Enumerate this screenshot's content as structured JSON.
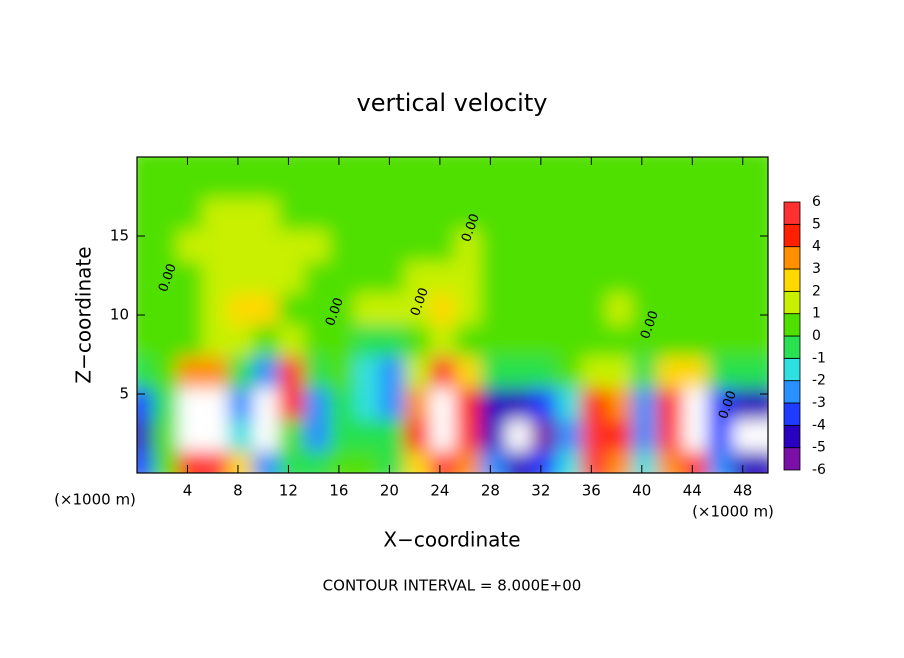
{
  "chart_data": {
    "type": "heatmap",
    "title": "vertical velocity",
    "x_label": "X−coordinate",
    "y_label": "Z−coordinate",
    "x_unit_label": "(×1000 m)",
    "y_unit_label": "(×1000 m)",
    "footer": "CONTOUR INTERVAL = 8.000E+00",
    "contour_labels": [
      "0.00",
      "0.00",
      "0.00",
      "0.00",
      "0.00",
      "0.00"
    ],
    "xlim": [
      0,
      50
    ],
    "ylim": [
      0,
      20
    ],
    "xticks": [
      4,
      8,
      12,
      16,
      20,
      24,
      28,
      32,
      36,
      40,
      44,
      48
    ],
    "yticks": [
      5,
      10,
      15
    ],
    "x": [
      1,
      3,
      5,
      7,
      9,
      11,
      13,
      15,
      17,
      19,
      21,
      23,
      25,
      27,
      29,
      31,
      33,
      35,
      37,
      39,
      41,
      43,
      45,
      47,
      49
    ],
    "y": [
      1,
      3,
      5,
      7,
      9,
      11,
      13,
      15,
      17,
      19
    ],
    "values": [
      [
        -4,
        0,
        4,
        5,
        2,
        -3,
        -1,
        -1,
        0,
        0,
        -1,
        2,
        5,
        3,
        -3,
        -5,
        -4,
        -2,
        5,
        3,
        -2,
        3,
        5,
        -3,
        -5
      ],
      [
        -5,
        0,
        8,
        9,
        -2,
        -7,
        0,
        -3,
        -1,
        -1,
        -1,
        4,
        9,
        5,
        -5,
        -7,
        -6,
        -3,
        6,
        4,
        -3,
        5,
        8,
        -4,
        -7
      ],
      [
        -4,
        -1,
        7,
        8,
        -3,
        -7,
        4,
        -3,
        -1,
        -2,
        -3,
        3,
        9,
        4,
        -5,
        -5,
        -4,
        -2,
        4,
        3,
        -3,
        4,
        7,
        -4,
        -5
      ],
      [
        -1,
        0,
        3,
        3,
        -1,
        -3,
        5,
        -1,
        0,
        -2,
        -3,
        1,
        5,
        2,
        -1,
        -1,
        -1,
        0,
        1,
        1,
        -1,
        2,
        2,
        -1,
        -1
      ],
      [
        0,
        0,
        0,
        1,
        1,
        0,
        1,
        0,
        0,
        -1,
        -1,
        0,
        1,
        0,
        0,
        0,
        0,
        0,
        0,
        0,
        0,
        0,
        0,
        0,
        0
      ],
      [
        0,
        0,
        0,
        1,
        2,
        2,
        0,
        0,
        0,
        1,
        1,
        1,
        2,
        1,
        0,
        0,
        0,
        0,
        0,
        1,
        0,
        0,
        0,
        0,
        0
      ],
      [
        0,
        0,
        0,
        1,
        1,
        1,
        1,
        0,
        0,
        0,
        0,
        1,
        1,
        1,
        0,
        0,
        0,
        0,
        0,
        0,
        0,
        0,
        0,
        0,
        0
      ],
      [
        0,
        0,
        1,
        1,
        1,
        1,
        1,
        1,
        0,
        0,
        0,
        0,
        0,
        1,
        0,
        0,
        0,
        0,
        0,
        0,
        0,
        0,
        0,
        0,
        0
      ],
      [
        0,
        0,
        0,
        1,
        1,
        1,
        0,
        0,
        0,
        0,
        0,
        0,
        0,
        0,
        0,
        0,
        0,
        0,
        0,
        0,
        0,
        0,
        0,
        0,
        0
      ],
      [
        0,
        0,
        0,
        0,
        0,
        0,
        0,
        0,
        0,
        0,
        0,
        0,
        0,
        0,
        0,
        0,
        0,
        0,
        0,
        0,
        0,
        0,
        0,
        0,
        0
      ]
    ],
    "colorbar": {
      "levels": [
        -6,
        -5,
        -4,
        -3,
        -2,
        -1,
        0,
        1,
        2,
        3,
        4,
        5,
        6
      ],
      "colors": [
        "#7a10a8",
        "#2a00c0",
        "#1e3cff",
        "#2890ff",
        "#30e0e0",
        "#28e050",
        "#50e000",
        "#c8f000",
        "#ffd800",
        "#ff9000",
        "#ff2000",
        "#ff3030"
      ],
      "extend_color": "#ffffff"
    }
  }
}
